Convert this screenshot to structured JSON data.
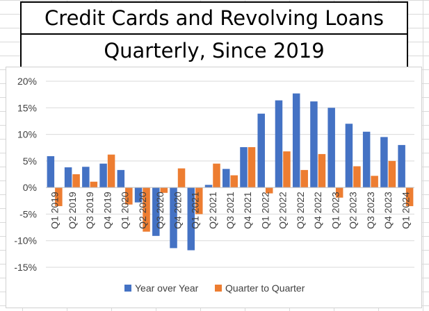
{
  "titles": {
    "line1": "Credit Cards and Revolving Loans",
    "line2": "Quarterly, Since 2019"
  },
  "colors": {
    "yoy": "#4472c4",
    "qoq": "#ed7d31",
    "gridline": "#d9d9d9",
    "axis": "#bfbfbf"
  },
  "chart_data": {
    "type": "bar",
    "title": "Credit Cards and Revolving Loans",
    "subtitle": "Quarterly, Since 2019",
    "categories": [
      "Q1 2019",
      "Q2 2019",
      "Q3 2019",
      "Q4 2019",
      "Q1 2020",
      "Q2 2020",
      "Q3 2020",
      "Q4 2020",
      "Q1 2021",
      "Q2 2021",
      "Q3 2021",
      "Q4 2021",
      "Q1 2022",
      "Q2 2022",
      "Q3 2022",
      "Q4 2022",
      "Q1 2023",
      "Q2 2023",
      "Q3 2023",
      "Q4 2023",
      "Q1 2024"
    ],
    "series": [
      {
        "name": "Year over Year",
        "values": [
          5.9,
          3.8,
          3.9,
          4.5,
          3.3,
          -2.8,
          -9.1,
          -11.4,
          -11.8,
          0.5,
          3.5,
          7.6,
          13.9,
          16.4,
          17.7,
          16.2,
          15.0,
          12.0,
          10.5,
          9.5,
          8.0
        ]
      },
      {
        "name": "Quarter to Quarter",
        "values": [
          -3.5,
          2.5,
          1.1,
          6.2,
          -3.2,
          -8.3,
          -1.0,
          3.6,
          -5.0,
          4.5,
          2.3,
          7.6,
          -1.1,
          6.8,
          3.3,
          6.3,
          -1.9,
          4.0,
          2.2,
          5.0,
          -3.5
        ]
      }
    ],
    "yticks": [
      "20%",
      "15%",
      "10%",
      "5%",
      "0%",
      "-5%",
      "-10%",
      "-15%"
    ],
    "ylim": [
      -15,
      20
    ],
    "legend_position": "bottom",
    "grid": true
  }
}
